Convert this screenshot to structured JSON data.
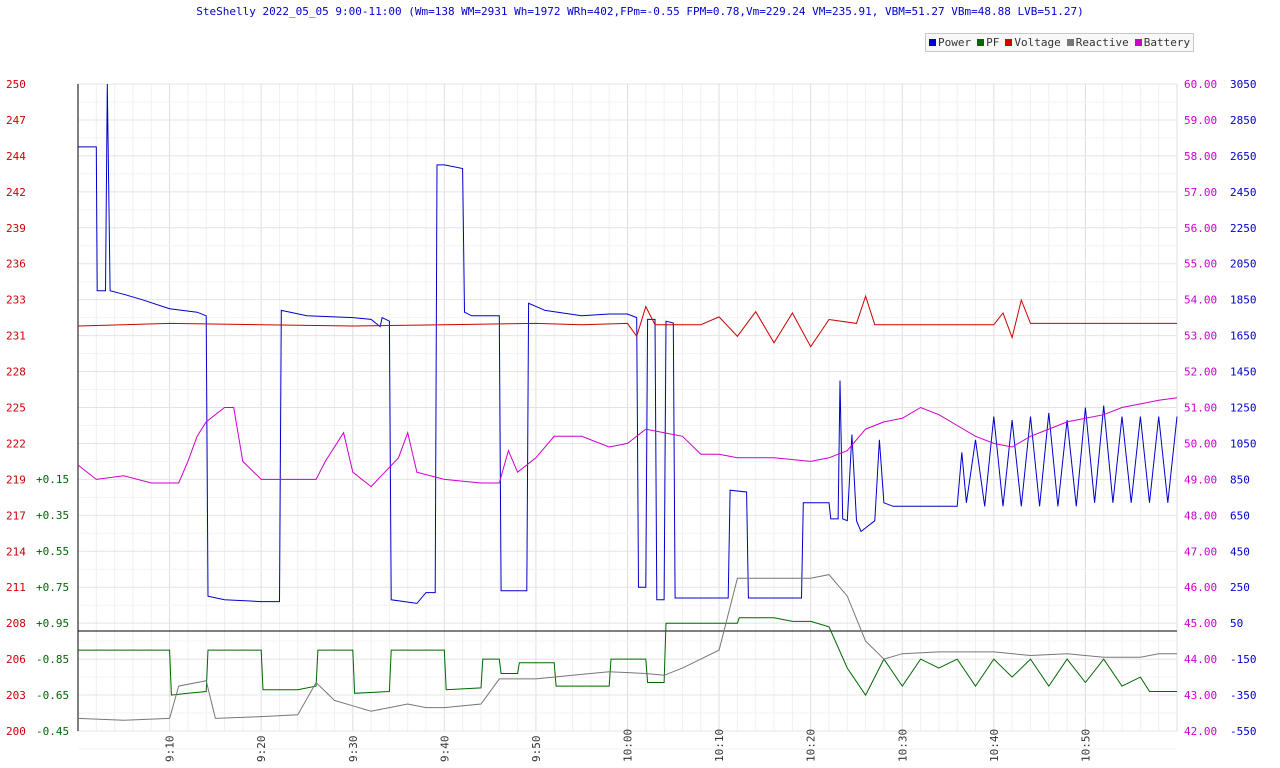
{
  "chart_data": {
    "type": "line",
    "title": "SteShelly 2022_05_05 9:00-11:00 (Wm=138 WM=2931 Wh=1972 WRh=402,FPm=-0.55 FPM=0.78,Vm=229.24 VM=235.91, VBM=51.27 VBm=48.88 LVB=51.27)",
    "legend": [
      "Power",
      "PF",
      "Voltage",
      "Reactive",
      "Battery"
    ],
    "legend_position": "top-right",
    "grid": true,
    "colors": {
      "Power": "#0000cc",
      "PF": "#006600",
      "Voltage": "#cc0000",
      "Reactive": "#777777",
      "Battery": "#cc00cc"
    },
    "x_ticks": [
      "9:10",
      "9:20",
      "9:30",
      "9:40",
      "9:50",
      "10:00",
      "10:10",
      "10:20",
      "10:30",
      "10:40",
      "10:50"
    ],
    "x_tick_minutes": [
      10,
      20,
      30,
      40,
      50,
      60,
      70,
      80,
      90,
      100,
      110
    ],
    "x_range_minutes": [
      0,
      120
    ],
    "voltage_axis": {
      "ticks": [
        "250",
        "247",
        "244",
        "242",
        "239",
        "236",
        "233",
        "231",
        "228",
        "225",
        "222",
        "219",
        "217",
        "214",
        "211",
        "208",
        "206",
        "203",
        "200"
      ],
      "ylim": [
        200,
        250
      ]
    },
    "pf_axis": {
      "ticks": [
        "+0.15",
        "+0.35",
        "+0.55",
        "+0.75",
        "+0.95",
        "-0.85",
        "-0.65",
        "-0.45"
      ]
    },
    "battery_axis": {
      "ticks": [
        "60.00",
        "59.00",
        "58.00",
        "57.00",
        "56.00",
        "55.00",
        "54.00",
        "53.00",
        "52.00",
        "51.00",
        "50.00",
        "49.00",
        "48.00",
        "47.00",
        "46.00",
        "45.00",
        "44.00",
        "43.00",
        "42.00"
      ],
      "ylim": [
        42,
        60
      ]
    },
    "power_axis": {
      "ticks": [
        "3050",
        "2850",
        "2650",
        "2450",
        "2250",
        "2050",
        "1850",
        "1650",
        "1450",
        "1250",
        "1050",
        "850",
        "650",
        "450",
        "250",
        "50",
        "-150",
        "-350",
        "-550"
      ],
      "ylim": [
        -550,
        3050
      ]
    },
    "series": [
      {
        "name": "Power",
        "axis": "power",
        "points": [
          [
            0,
            2700
          ],
          [
            2,
            2700
          ],
          [
            2.1,
            1900
          ],
          [
            3,
            1900
          ],
          [
            3.2,
            3050
          ],
          [
            3.5,
            1900
          ],
          [
            5,
            1880
          ],
          [
            7,
            1850
          ],
          [
            10,
            1800
          ],
          [
            13,
            1780
          ],
          [
            14,
            1760
          ],
          [
            14.2,
            200
          ],
          [
            16,
            180
          ],
          [
            20,
            170
          ],
          [
            22,
            170
          ],
          [
            22.2,
            1790
          ],
          [
            25,
            1760
          ],
          [
            30,
            1750
          ],
          [
            32,
            1740
          ],
          [
            33,
            1700
          ],
          [
            33.2,
            1750
          ],
          [
            34,
            1730
          ],
          [
            34.2,
            180
          ],
          [
            37,
            160
          ],
          [
            38,
            220
          ],
          [
            39,
            220
          ],
          [
            39.2,
            2600
          ],
          [
            40,
            2600
          ],
          [
            42,
            2580
          ],
          [
            42.2,
            1780
          ],
          [
            43,
            1760
          ],
          [
            46,
            1760
          ],
          [
            46.2,
            230
          ],
          [
            49,
            230
          ],
          [
            49.2,
            1830
          ],
          [
            51,
            1790
          ],
          [
            55,
            1760
          ],
          [
            58,
            1770
          ],
          [
            60,
            1770
          ],
          [
            61,
            1750
          ],
          [
            61.2,
            250
          ],
          [
            62,
            250
          ],
          [
            62.2,
            1740
          ],
          [
            63,
            1740
          ],
          [
            63.2,
            180
          ],
          [
            64,
            180
          ],
          [
            64.2,
            1730
          ],
          [
            65,
            1720
          ],
          [
            65.2,
            190
          ],
          [
            71,
            190
          ],
          [
            71.2,
            790
          ],
          [
            73,
            780
          ],
          [
            73.2,
            190
          ],
          [
            79,
            190
          ],
          [
            79.2,
            720
          ],
          [
            82,
            720
          ],
          [
            82.2,
            630
          ],
          [
            83,
            630
          ],
          [
            83.2,
            1400
          ],
          [
            83.5,
            630
          ],
          [
            84,
            620
          ],
          [
            84.5,
            1100
          ],
          [
            85,
            620
          ],
          [
            85.5,
            560
          ],
          [
            86,
            580
          ],
          [
            87,
            620
          ],
          [
            87.5,
            1070
          ],
          [
            88,
            720
          ],
          [
            89,
            700
          ],
          [
            94,
            700
          ],
          [
            95,
            700
          ],
          [
            96,
            700
          ],
          [
            96.5,
            1000
          ],
          [
            97,
            720
          ],
          [
            98,
            1070
          ],
          [
            99,
            700
          ],
          [
            100,
            1200
          ],
          [
            101,
            700
          ],
          [
            102,
            1180
          ],
          [
            103,
            700
          ],
          [
            104,
            1200
          ],
          [
            105,
            700
          ],
          [
            106,
            1220
          ],
          [
            107,
            700
          ],
          [
            108,
            1180
          ],
          [
            109,
            700
          ],
          [
            110,
            1250
          ],
          [
            111,
            720
          ],
          [
            112,
            1260
          ],
          [
            113,
            720
          ],
          [
            114,
            1200
          ],
          [
            115,
            720
          ],
          [
            116,
            1200
          ],
          [
            117,
            720
          ],
          [
            118,
            1200
          ],
          [
            119,
            720
          ],
          [
            120,
            1200
          ]
        ]
      },
      {
        "name": "Voltage",
        "axis": "voltage",
        "points": [
          [
            0,
            231.3
          ],
          [
            10,
            231.5
          ],
          [
            20,
            231.4
          ],
          [
            30,
            231.3
          ],
          [
            40,
            231.4
          ],
          [
            50,
            231.5
          ],
          [
            55,
            231.4
          ],
          [
            60,
            231.5
          ],
          [
            61,
            230.5
          ],
          [
            62,
            232.8
          ],
          [
            63,
            231.4
          ],
          [
            68,
            231.4
          ],
          [
            70,
            232.0
          ],
          [
            72,
            230.5
          ],
          [
            74,
            232.4
          ],
          [
            76,
            230.0
          ],
          [
            78,
            232.3
          ],
          [
            80,
            229.7
          ],
          [
            82,
            231.8
          ],
          [
            85,
            231.5
          ],
          [
            86,
            233.6
          ],
          [
            87,
            231.4
          ],
          [
            100,
            231.4
          ],
          [
            101,
            232.3
          ],
          [
            102,
            230.4
          ],
          [
            103,
            233.3
          ],
          [
            104,
            231.5
          ],
          [
            110,
            231.5
          ],
          [
            120,
            231.5
          ]
        ]
      },
      {
        "name": "Battery",
        "axis": "battery",
        "points": [
          [
            0,
            49.4
          ],
          [
            2,
            49.0
          ],
          [
            5,
            49.1
          ],
          [
            8,
            48.9
          ],
          [
            10,
            48.9
          ],
          [
            11,
            48.9
          ],
          [
            12,
            49.5
          ],
          [
            13,
            50.2
          ],
          [
            14,
            50.6
          ],
          [
            16,
            51.0
          ],
          [
            17,
            51.0
          ],
          [
            18,
            49.5
          ],
          [
            20,
            49.0
          ],
          [
            24,
            49.0
          ],
          [
            26,
            49.0
          ],
          [
            27,
            49.5
          ],
          [
            29,
            50.3
          ],
          [
            30,
            49.2
          ],
          [
            32,
            48.8
          ],
          [
            35,
            49.6
          ],
          [
            36,
            50.3
          ],
          [
            37,
            49.2
          ],
          [
            40,
            49.0
          ],
          [
            44,
            48.9
          ],
          [
            46,
            48.9
          ],
          [
            47,
            49.8
          ],
          [
            48,
            49.2
          ],
          [
            50,
            49.6
          ],
          [
            52,
            50.2
          ],
          [
            55,
            50.2
          ],
          [
            58,
            49.9
          ],
          [
            60,
            50.0
          ],
          [
            62,
            50.4
          ],
          [
            64,
            50.3
          ],
          [
            66,
            50.2
          ],
          [
            68,
            49.7
          ],
          [
            70,
            49.7
          ],
          [
            72,
            49.6
          ],
          [
            76,
            49.6
          ],
          [
            80,
            49.5
          ],
          [
            82,
            49.6
          ],
          [
            84,
            49.8
          ],
          [
            86,
            50.4
          ],
          [
            88,
            50.6
          ],
          [
            90,
            50.7
          ],
          [
            92,
            51.0
          ],
          [
            94,
            50.8
          ],
          [
            96,
            50.5
          ],
          [
            98,
            50.2
          ],
          [
            100,
            50.0
          ],
          [
            102,
            49.9
          ],
          [
            104,
            50.2
          ],
          [
            106,
            50.4
          ],
          [
            108,
            50.6
          ],
          [
            110,
            50.7
          ],
          [
            112,
            50.8
          ],
          [
            114,
            51.0
          ],
          [
            116,
            51.1
          ],
          [
            118,
            51.2
          ],
          [
            120,
            51.27
          ]
        ]
      },
      {
        "name": "PF",
        "axis": "power",
        "points": [
          [
            0,
            -100
          ],
          [
            10,
            -100
          ],
          [
            10.2,
            -350
          ],
          [
            12,
            -340
          ],
          [
            14,
            -330
          ],
          [
            14.2,
            -100
          ],
          [
            20,
            -100
          ],
          [
            20.2,
            -320
          ],
          [
            24,
            -320
          ],
          [
            26,
            -300
          ],
          [
            26.2,
            -100
          ],
          [
            30,
            -100
          ],
          [
            30.2,
            -340
          ],
          [
            34,
            -330
          ],
          [
            34.2,
            -100
          ],
          [
            40,
            -100
          ],
          [
            40.2,
            -320
          ],
          [
            44,
            -310
          ],
          [
            44.2,
            -150
          ],
          [
            46,
            -150
          ],
          [
            46.2,
            -230
          ],
          [
            48,
            -230
          ],
          [
            48.2,
            -170
          ],
          [
            52,
            -170
          ],
          [
            52.2,
            -300
          ],
          [
            58,
            -300
          ],
          [
            58.2,
            -150
          ],
          [
            62,
            -150
          ],
          [
            62.2,
            -280
          ],
          [
            64,
            -280
          ],
          [
            64.2,
            50
          ],
          [
            72,
            50
          ],
          [
            72.2,
            80
          ],
          [
            76,
            80
          ],
          [
            78,
            60
          ],
          [
            80,
            60
          ],
          [
            82,
            30
          ],
          [
            84,
            -200
          ],
          [
            86,
            -350
          ],
          [
            88,
            -150
          ],
          [
            90,
            -300
          ],
          [
            92,
            -150
          ],
          [
            94,
            -200
          ],
          [
            96,
            -150
          ],
          [
            98,
            -300
          ],
          [
            100,
            -150
          ],
          [
            102,
            -250
          ],
          [
            104,
            -150
          ],
          [
            106,
            -300
          ],
          [
            108,
            -150
          ],
          [
            110,
            -280
          ],
          [
            112,
            -150
          ],
          [
            114,
            -300
          ],
          [
            116,
            -250
          ],
          [
            117,
            -330
          ],
          [
            120,
            -330
          ]
        ]
      },
      {
        "name": "Reactive",
        "axis": "power",
        "points": [
          [
            0,
            -480
          ],
          [
            5,
            -490
          ],
          [
            10,
            -480
          ],
          [
            11,
            -300
          ],
          [
            14,
            -270
          ],
          [
            15,
            -480
          ],
          [
            20,
            -470
          ],
          [
            24,
            -460
          ],
          [
            26,
            -280
          ],
          [
            28,
            -380
          ],
          [
            30,
            -410
          ],
          [
            32,
            -440
          ],
          [
            34,
            -420
          ],
          [
            36,
            -400
          ],
          [
            38,
            -420
          ],
          [
            40,
            -420
          ],
          [
            44,
            -400
          ],
          [
            46,
            -260
          ],
          [
            50,
            -260
          ],
          [
            54,
            -240
          ],
          [
            58,
            -220
          ],
          [
            62,
            -230
          ],
          [
            64,
            -240
          ],
          [
            66,
            -200
          ],
          [
            68,
            -150
          ],
          [
            70,
            -100
          ],
          [
            72,
            300
          ],
          [
            76,
            300
          ],
          [
            80,
            300
          ],
          [
            82,
            320
          ],
          [
            84,
            200
          ],
          [
            86,
            -50
          ],
          [
            88,
            -150
          ],
          [
            90,
            -120
          ],
          [
            94,
            -110
          ],
          [
            100,
            -110
          ],
          [
            104,
            -130
          ],
          [
            108,
            -120
          ],
          [
            112,
            -140
          ],
          [
            116,
            -140
          ],
          [
            118,
            -120
          ],
          [
            120,
            -120
          ]
        ]
      }
    ]
  }
}
